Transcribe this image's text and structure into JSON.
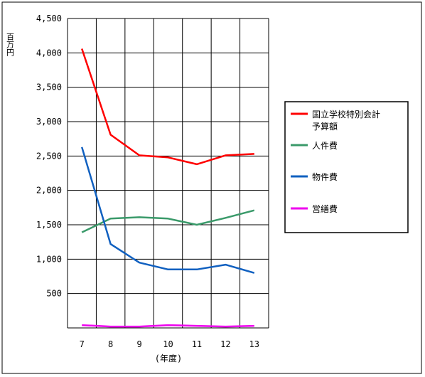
{
  "chart_data": {
    "type": "line",
    "ylabel": "百万円",
    "xlabel": "(年度)",
    "categories": [
      "7",
      "8",
      "9",
      "10",
      "11",
      "12",
      "13"
    ],
    "ylim": [
      0,
      4500
    ],
    "yticks": [
      0,
      500,
      1000,
      1500,
      2000,
      2500,
      3000,
      3500,
      4000,
      4500
    ],
    "ytick_labels": [
      "",
      "500",
      "1,000",
      "1,500",
      "2,000",
      "2,500",
      "3,000",
      "3,500",
      "4,000",
      "4,500"
    ],
    "grid": true,
    "legend_position": "right",
    "series": [
      {
        "name": "国立学校特別会計予算額",
        "name_lines": [
          "国立学校特別会計",
          "予算額"
        ],
        "color": "#ff0000",
        "values": [
          4060,
          2810,
          2510,
          2480,
          2380,
          2510,
          2530
        ]
      },
      {
        "name": "人件費",
        "name_lines": [
          "人件費"
        ],
        "color": "#3a9a6a",
        "values": [
          1390,
          1590,
          1610,
          1590,
          1500,
          1600,
          1710
        ]
      },
      {
        "name": "物件費",
        "name_lines": [
          "物件費"
        ],
        "color": "#1060c0",
        "values": [
          2630,
          1220,
          950,
          850,
          850,
          920,
          800
        ]
      },
      {
        "name": "営繕費",
        "name_lines": [
          "営繕費"
        ],
        "color": "#ee00ee",
        "values": [
          40,
          20,
          20,
          40,
          30,
          20,
          30
        ]
      }
    ]
  }
}
